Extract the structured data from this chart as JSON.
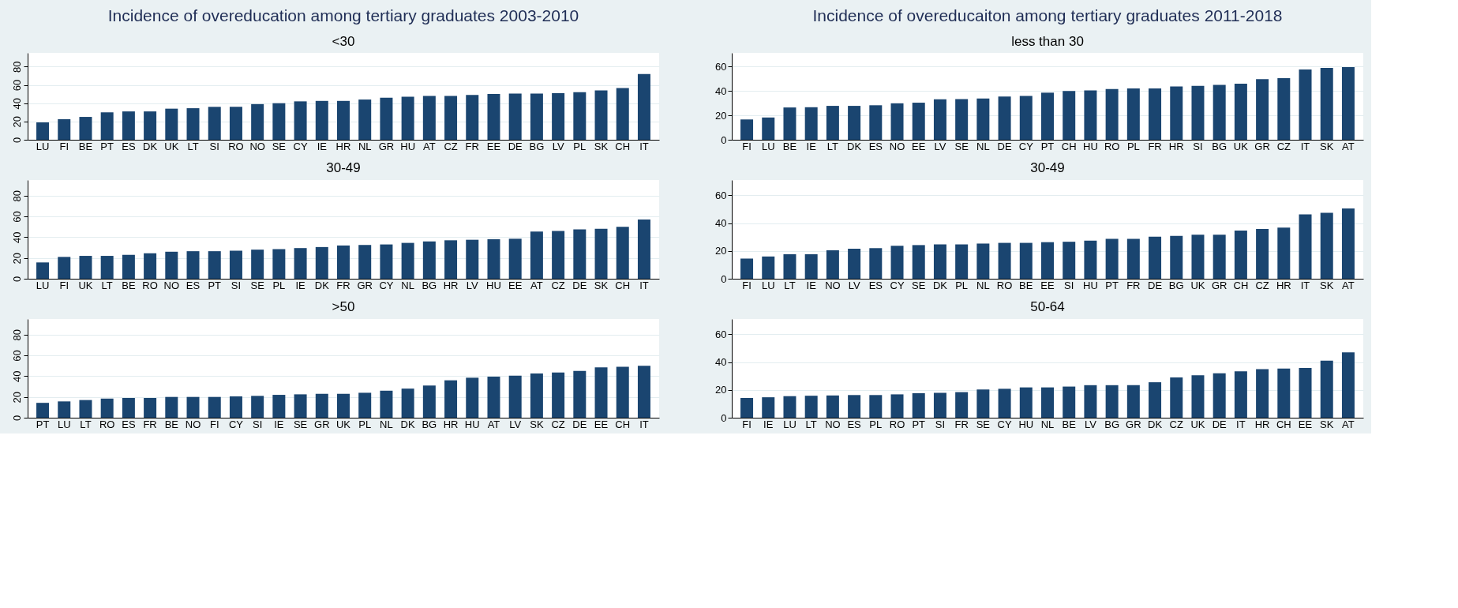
{
  "chart_data": [
    {
      "type": "bar",
      "title": "Incidence of overeducation among tertiary graduates  2003-2010",
      "subtitle": "<30",
      "color": "#1a4570",
      "grid": "y",
      "ylim": [
        0,
        95
      ],
      "yticks": [
        0,
        20,
        40,
        60,
        80
      ],
      "categories": [
        "LU",
        "FI",
        "BE",
        "PT",
        "ES",
        "DK",
        "UK",
        "LT",
        "SI",
        "RO",
        "NO",
        "SE",
        "CY",
        "IE",
        "HR",
        "NL",
        "GR",
        "HU",
        "AT",
        "CZ",
        "FR",
        "EE",
        "DE",
        "BG",
        "LV",
        "PL",
        "SK",
        "CH",
        "IT"
      ],
      "values": [
        19,
        22.5,
        25,
        30,
        31,
        31,
        34,
        34.5,
        36,
        36,
        39,
        40,
        42,
        42.5,
        42.5,
        44,
        46,
        47,
        48,
        48,
        49,
        50,
        50.5,
        50.5,
        51,
        52,
        54,
        56.5,
        72
      ]
    },
    {
      "type": "bar",
      "title": "30-49",
      "color": "#1a4570",
      "grid": "y",
      "ylim": [
        0,
        95
      ],
      "yticks": [
        0,
        20,
        40,
        60,
        80
      ],
      "categories": [
        "LU",
        "FI",
        "UK",
        "LT",
        "BE",
        "RO",
        "NO",
        "ES",
        "PT",
        "SI",
        "SE",
        "PL",
        "IE",
        "DK",
        "FR",
        "GR",
        "CY",
        "NL",
        "BG",
        "HR",
        "LV",
        "HU",
        "EE",
        "AT",
        "CZ",
        "DE",
        "SK",
        "CH",
        "IT"
      ],
      "values": [
        15.7,
        21,
        22,
        22,
        23,
        24.5,
        26,
        26.5,
        26.5,
        27,
        28,
        28.5,
        29.5,
        30.5,
        32,
        32.5,
        33,
        34.5,
        36,
        37,
        37.5,
        38,
        38.5,
        45.5,
        46,
        47.5,
        48,
        50,
        57
      ]
    },
    {
      "type": "bar",
      "title": ">50",
      "color": "#1a4570",
      "grid": "y",
      "ylim": [
        0,
        95
      ],
      "yticks": [
        0,
        20,
        40,
        60,
        80
      ],
      "categories": [
        "PT",
        "LU",
        "LT",
        "RO",
        "ES",
        "FR",
        "BE",
        "NO",
        "FI",
        "CY",
        "SI",
        "IE",
        "SE",
        "GR",
        "UK",
        "PL",
        "NL",
        "DK",
        "BG",
        "HR",
        "HU",
        "AT",
        "LV",
        "SK",
        "CZ",
        "DE",
        "EE",
        "CH",
        "IT"
      ],
      "values": [
        14.3,
        15.7,
        17,
        18.4,
        19,
        19,
        20,
        20,
        20,
        20.5,
        21,
        22,
        22.5,
        23,
        23,
        24,
        26,
        28,
        31,
        36,
        38.5,
        39.5,
        40.5,
        42.5,
        43.5,
        45,
        48.5,
        49,
        50
      ]
    },
    {
      "type": "bar",
      "title": "Incidence of overeducaiton among tertiary graduates 2011-2018",
      "subtitle": "less than 30",
      "color": "#1a4570",
      "grid": "y",
      "ylim": [
        0,
        71
      ],
      "yticks": [
        0,
        20,
        40,
        60
      ],
      "categories": [
        "FI",
        "LU",
        "BE",
        "IE",
        "LT",
        "DK",
        "ES",
        "NO",
        "EE",
        "LV",
        "SE",
        "NL",
        "DE",
        "CY",
        "PT",
        "CH",
        "HU",
        "RO",
        "PL",
        "FR",
        "HR",
        "SI",
        "BG",
        "UK",
        "GR",
        "CZ",
        "IT",
        "SK",
        "AT"
      ],
      "values": [
        16.6,
        18.2,
        26.4,
        26.6,
        27.7,
        27.7,
        28.2,
        29.8,
        30.3,
        33,
        33.2,
        33.8,
        35.4,
        35.9,
        38.5,
        39.8,
        40.4,
        41.4,
        42,
        42,
        43.5,
        44,
        44.9,
        45.9,
        49.6,
        50.4,
        57.5,
        58.8,
        59.4
      ]
    },
    {
      "type": "bar",
      "title": "30-49",
      "color": "#1a4570",
      "grid": "y",
      "ylim": [
        0,
        71
      ],
      "yticks": [
        0,
        20,
        40,
        60
      ],
      "categories": [
        "FI",
        "LU",
        "LT",
        "IE",
        "NO",
        "LV",
        "ES",
        "CY",
        "SE",
        "DK",
        "PL",
        "NL",
        "RO",
        "BE",
        "EE",
        "SI",
        "HU",
        "PT",
        "FR",
        "DE",
        "BG",
        "UK",
        "GR",
        "CH",
        "CZ",
        "HR",
        "IT",
        "SK",
        "AT"
      ],
      "values": [
        14.5,
        16,
        17.6,
        17.6,
        20.5,
        21.6,
        22,
        23.7,
        24.2,
        24.7,
        24.7,
        25.3,
        25.8,
        25.8,
        26.3,
        26.6,
        27.4,
        28.7,
        28.7,
        30.3,
        30.8,
        31.6,
        31.6,
        34.7,
        35.8,
        36.8,
        46.3,
        47.4,
        50.5
      ]
    },
    {
      "type": "bar",
      "title": "50-64",
      "color": "#1a4570",
      "grid": "y",
      "ylim": [
        0,
        71
      ],
      "yticks": [
        0,
        20,
        40,
        60
      ],
      "categories": [
        "FI",
        "IE",
        "LU",
        "LT",
        "NO",
        "ES",
        "PL",
        "RO",
        "PT",
        "SI",
        "FR",
        "SE",
        "CY",
        "HU",
        "NL",
        "BE",
        "LV",
        "BG",
        "GR",
        "DK",
        "CZ",
        "UK",
        "DE",
        "IT",
        "HR",
        "CH",
        "EE",
        "SK",
        "AT"
      ],
      "values": [
        14.2,
        14.7,
        15.5,
        15.8,
        16,
        16.3,
        16.3,
        16.8,
        17.6,
        17.9,
        18.4,
        20.3,
        20.8,
        21.8,
        21.8,
        22.4,
        23.4,
        23.4,
        23.4,
        25.5,
        29,
        30.5,
        32,
        33.4,
        35,
        35.3,
        35.8,
        41,
        47
      ]
    }
  ]
}
